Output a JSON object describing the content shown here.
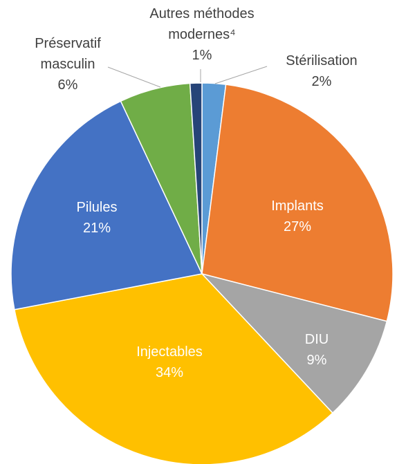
{
  "chart_data": {
    "type": "pie",
    "categories": [
      "Stérilisation",
      "Implants",
      "DIU",
      "Injectables",
      "Pilules",
      "Préservatif masculin",
      "Autres méthodes modernes⁴"
    ],
    "values": [
      2,
      27,
      9,
      34,
      21,
      6,
      1
    ],
    "value_labels": [
      "2%",
      "27%",
      "9%",
      "34%",
      "21%",
      "6%",
      "1%"
    ],
    "colors": [
      "#5b9bd5",
      "#ed7d31",
      "#a5a5a5",
      "#ffc000",
      "#4472c4",
      "#70ad47",
      "#264478"
    ]
  }
}
